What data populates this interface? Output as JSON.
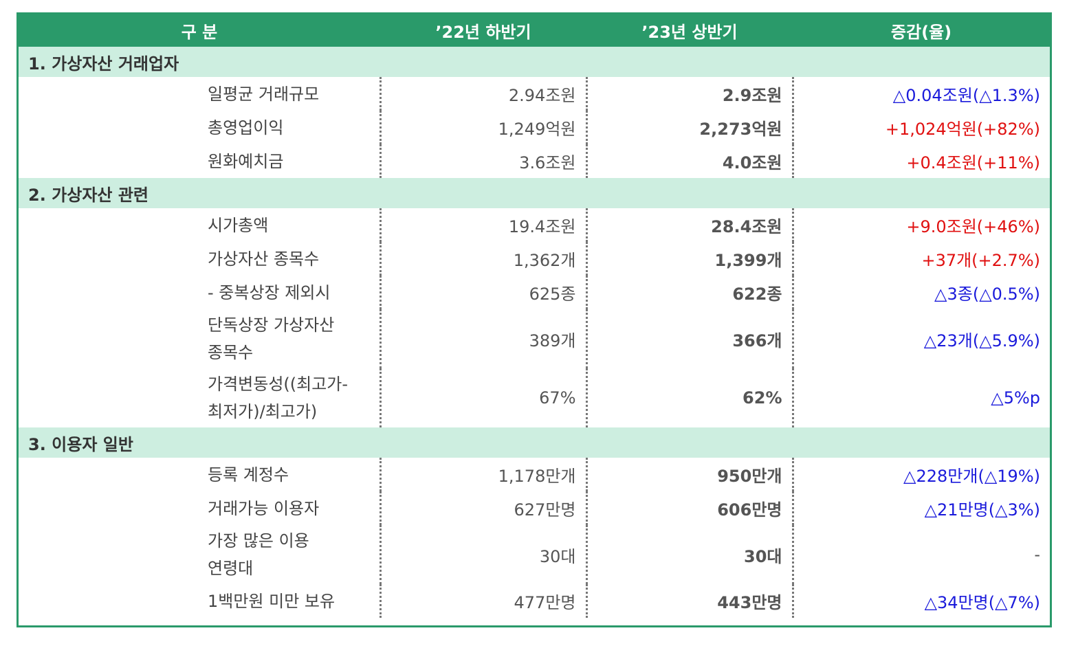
{
  "header": {
    "col1": "구 분",
    "col2": "’22년 하반기",
    "col3": "’23년 상반기",
    "col4": "증감(율)"
  },
  "sections": [
    {
      "title": "1. 가상자산 거래업자",
      "rows": [
        {
          "label": "일평균 거래규모",
          "v22": "2.94조원",
          "v23": "2.9조원",
          "change": "△0.04조원(△1.3%)",
          "tone": "blue"
        },
        {
          "label": "총영업이익",
          "v22": "1,249억원",
          "v23": "2,273억원",
          "change": "+1,024억원(+82%)",
          "tone": "red"
        },
        {
          "label": "원화예치금",
          "v22": "3.6조원",
          "v23": "4.0조원",
          "change": "+0.4조원(+11%)",
          "tone": "red"
        }
      ]
    },
    {
      "title": "2. 가상자산 관련",
      "rows": [
        {
          "label": "시가총액",
          "v22": "19.4조원",
          "v23": "28.4조원",
          "change": "+9.0조원(+46%)",
          "tone": "red"
        },
        {
          "label": "가상자산 종목수",
          "v22": "1,362개",
          "v23": "1,399개",
          "change": "+37개(+2.7%)",
          "tone": "red"
        },
        {
          "label": "- 중복상장 제외시",
          "v22": "625종",
          "v23": "622종",
          "change": "△3종(△0.5%)",
          "tone": "blue"
        },
        {
          "label_lines": [
            "단독상장 가상자산",
            "종목수"
          ],
          "v22": "389개",
          "v23": "366개",
          "change": "△23개(△5.9%)",
          "tone": "blue"
        },
        {
          "label_lines": [
            "가격변동성((최고가-",
            "최저가)/최고가)"
          ],
          "v22": "67%",
          "v23": "62%",
          "change": "△5%p",
          "tone": "blue"
        }
      ]
    },
    {
      "title": "3. 이용자 일반",
      "rows": [
        {
          "label": "등록 계정수",
          "v22": "1,178만개",
          "v23": "950만개",
          "change": "△228만개(△19%)",
          "tone": "blue"
        },
        {
          "label": "거래가능 이용자",
          "v22": "627만명",
          "v23": "606만명",
          "change": "△21만명(△3%)",
          "tone": "blue"
        },
        {
          "label_lines": [
            "가장 많은 이용",
            "연령대"
          ],
          "v22": "30대",
          "v23": "30대",
          "change": "-",
          "tone": "dark"
        },
        {
          "label": "1백만원 미만 보유",
          "v22": "477만명",
          "v23": "443만명",
          "change": "△34만명(△7%)",
          "tone": "blue"
        }
      ]
    }
  ],
  "colors": {
    "header_bg": "#2a9a6a",
    "section_bg": "#cdeee0",
    "decrease": "#1a1adb",
    "increase": "#e01010"
  }
}
